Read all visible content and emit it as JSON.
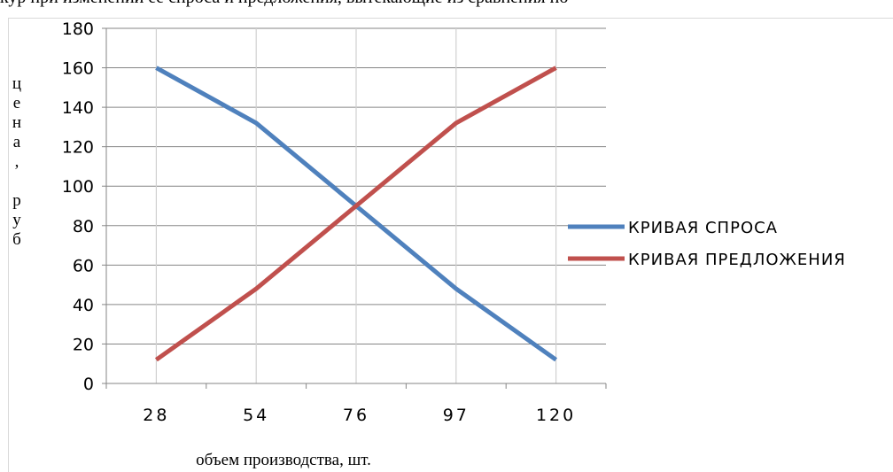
{
  "page": {
    "top_text": "кур при изменении её спроса и предложения, вытекающие из сравнения по"
  },
  "chart_data": {
    "type": "line",
    "title": "",
    "xlabel": "объем производства, шт.",
    "ylabel": "цена, руб",
    "categories": [
      "28",
      "54",
      "76",
      "97",
      "120"
    ],
    "ylim": [
      0,
      180
    ],
    "yticks": [
      0,
      20,
      40,
      60,
      80,
      100,
      120,
      140,
      160,
      180
    ],
    "grid": true,
    "legend_position": "right",
    "series": [
      {
        "name": "КРИВАЯ СПРОСА",
        "color": "#4F81BD",
        "values": [
          160,
          132,
          90,
          48,
          12
        ]
      },
      {
        "name": "КРИВАЯ ПРЕДЛОЖЕНИЯ",
        "color": "#C0504D",
        "values": [
          12,
          48,
          90,
          132,
          160
        ]
      }
    ]
  }
}
